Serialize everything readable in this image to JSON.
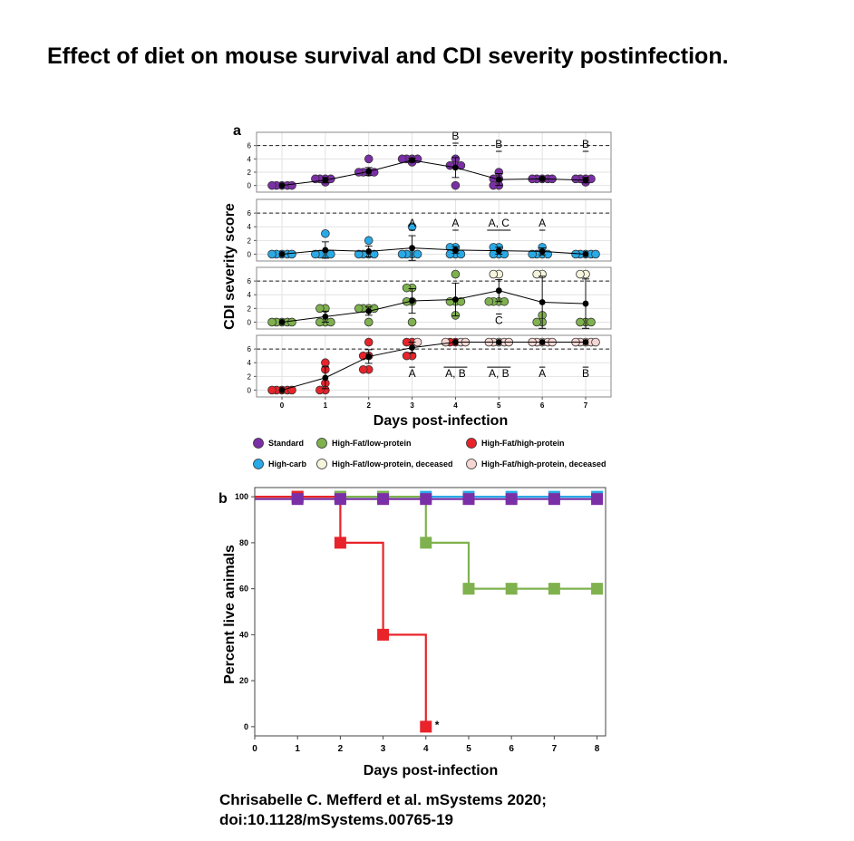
{
  "title": "Effect of diet on mouse survival and CDI severity postinfection.",
  "citation": {
    "line1": "Chrisabelle C. Mefferd et al. mSystems 2020;",
    "line2": "doi:10.1128/mSystems.00765-19"
  },
  "colors": {
    "standard": "#7b2fa6",
    "high_carb": "#29a9e6",
    "hflp": "#7fb24e",
    "hfhp": "#e8232a",
    "hflp_deceased": "#f5f4dc",
    "hfhp_deceased": "#f6d6d3",
    "mean": "#000000",
    "grid": "#e2e2e2"
  },
  "chart_data": [
    {
      "panel_label": "a",
      "type": "scatter",
      "xlabel": "Days post-infection",
      "ylabel": "CDI severity score",
      "x_ticks": [
        "0",
        "1",
        "2",
        "3",
        "4",
        "5",
        "6",
        "7"
      ],
      "y_ticks": [
        "0",
        "2",
        "4",
        "6"
      ],
      "ylim": [
        -1,
        8
      ],
      "threshold_line": 6,
      "legend_position": "bottom",
      "legend": [
        {
          "label": "Standard",
          "color_key": "standard"
        },
        {
          "label": "High-Fat/low-protein",
          "color_key": "hflp"
        },
        {
          "label": "High-Fat/high-protein",
          "color_key": "hfhp"
        },
        {
          "label": "High-carb",
          "color_key": "high_carb"
        },
        {
          "label": "High-Fat/low-protein, deceased",
          "color_key": "hflp_deceased"
        },
        {
          "label": "High-Fat/high-protein, deceased",
          "color_key": "hfhp_deceased"
        }
      ],
      "panels": [
        {
          "group": "Standard",
          "color_key": "standard",
          "means": [
            0,
            0.8,
            2.1,
            3.8,
            2.7,
            0.9,
            1.0,
            0.8
          ],
          "errors": [
            0,
            0.4,
            0.6,
            0.3,
            1.5,
            0.9,
            0.2,
            0.4
          ],
          "points": [
            [
              0,
              0
            ],
            [
              0,
              0
            ],
            [
              0,
              0
            ],
            [
              0,
              0
            ],
            [
              0,
              0
            ],
            [
              1,
              0.5
            ],
            [
              1,
              1
            ],
            [
              1,
              1
            ],
            [
              1,
              1
            ],
            [
              1,
              1
            ],
            [
              2,
              2
            ],
            [
              2,
              2
            ],
            [
              2,
              2
            ],
            [
              2,
              2
            ],
            [
              2,
              4
            ],
            [
              3,
              4
            ],
            [
              3,
              4
            ],
            [
              3,
              4
            ],
            [
              3,
              4
            ],
            [
              3,
              3.5
            ],
            [
              4,
              4
            ],
            [
              4,
              3
            ],
            [
              4,
              3
            ],
            [
              4,
              3
            ],
            [
              4,
              0
            ],
            [
              5,
              2
            ],
            [
              5,
              1
            ],
            [
              5,
              1
            ],
            [
              5,
              0
            ],
            [
              5,
              0
            ],
            [
              6,
              1
            ],
            [
              6,
              1
            ],
            [
              6,
              1
            ],
            [
              6,
              1
            ],
            [
              6,
              1
            ],
            [
              7,
              1
            ],
            [
              7,
              1
            ],
            [
              7,
              1
            ],
            [
              7,
              1
            ],
            [
              7,
              0.5
            ]
          ],
          "annotations": [
            {
              "day": 4,
              "text": "B",
              "pos": "above",
              "overline": false,
              "underline": true
            },
            {
              "day": 5,
              "text": "B",
              "pos": "above",
              "overline": false,
              "underline": true
            },
            {
              "day": 7,
              "text": "B",
              "pos": "above",
              "overline": false,
              "underline": true
            }
          ]
        },
        {
          "group": "High-carb",
          "color_key": "high_carb",
          "means": [
            0,
            0.6,
            0.4,
            0.9,
            0.6,
            0.5,
            0.4,
            0
          ],
          "errors": [
            0,
            1.2,
            0.8,
            1.8,
            0.5,
            0.5,
            0.5,
            0
          ],
          "points": [
            [
              0,
              0
            ],
            [
              0,
              0
            ],
            [
              0,
              0
            ],
            [
              0,
              0
            ],
            [
              0,
              0
            ],
            [
              1,
              3
            ],
            [
              1,
              0
            ],
            [
              1,
              0
            ],
            [
              1,
              0
            ],
            [
              1,
              0
            ],
            [
              2,
              2
            ],
            [
              2,
              0
            ],
            [
              2,
              0
            ],
            [
              2,
              0
            ],
            [
              2,
              0
            ],
            [
              3,
              4
            ],
            [
              3,
              0
            ],
            [
              3,
              0
            ],
            [
              3,
              0
            ],
            [
              3,
              0
            ],
            [
              4,
              1
            ],
            [
              4,
              1
            ],
            [
              4,
              0
            ],
            [
              4,
              0
            ],
            [
              4,
              0
            ],
            [
              5,
              1
            ],
            [
              5,
              1
            ],
            [
              5,
              0
            ],
            [
              5,
              0
            ],
            [
              5,
              0
            ],
            [
              6,
              1
            ],
            [
              6,
              0
            ],
            [
              6,
              0
            ],
            [
              6,
              0
            ],
            [
              6,
              0
            ],
            [
              7,
              0
            ],
            [
              7,
              0
            ],
            [
              7,
              0
            ],
            [
              7,
              0
            ],
            [
              7,
              0
            ]
          ],
          "annotations": [
            {
              "day": 3,
              "text": "A",
              "pos": "above",
              "overline": false,
              "underline": true
            },
            {
              "day": 4,
              "text": "A",
              "pos": "above",
              "overline": false,
              "underline": true
            },
            {
              "day": 5,
              "text": "A, C",
              "pos": "above",
              "overline": false,
              "underline": true
            },
            {
              "day": 6,
              "text": "A",
              "pos": "above",
              "overline": false,
              "underline": true
            }
          ]
        },
        {
          "group": "High-Fat/low-protein",
          "color_key": "hflp",
          "means": [
            0,
            0.8,
            1.6,
            3.1,
            3.3,
            4.6,
            2.9,
            2.7
          ],
          "errors": [
            0,
            0.8,
            0.6,
            1.8,
            2.4,
            1.6,
            3.8,
            3.6
          ],
          "points": [
            [
              0,
              0
            ],
            [
              0,
              0
            ],
            [
              0,
              0
            ],
            [
              0,
              0
            ],
            [
              0,
              0
            ],
            [
              1,
              2
            ],
            [
              1,
              2
            ],
            [
              1,
              0
            ],
            [
              1,
              0
            ],
            [
              1,
              0
            ],
            [
              2,
              2
            ],
            [
              2,
              2
            ],
            [
              2,
              2
            ],
            [
              2,
              2
            ],
            [
              2,
              0
            ],
            [
              3,
              5
            ],
            [
              3,
              5
            ],
            [
              3,
              3
            ],
            [
              3,
              3
            ],
            [
              3,
              0
            ],
            [
              4,
              7
            ],
            [
              4,
              3
            ],
            [
              4,
              3
            ],
            [
              4,
              3
            ],
            [
              4,
              1
            ],
            [
              5,
              3
            ],
            [
              5,
              3
            ],
            [
              5,
              3
            ],
            [
              5,
              3
            ],
            [
              6,
              1
            ],
            [
              6,
              0
            ],
            [
              6,
              0
            ],
            [
              7,
              0
            ],
            [
              7,
              0
            ],
            [
              7,
              0
            ]
          ],
          "deceased_points": [
            [
              5,
              7
            ],
            [
              5,
              7
            ],
            [
              6,
              7
            ],
            [
              6,
              7
            ],
            [
              7,
              7
            ],
            [
              7,
              7
            ]
          ],
          "annotations": [
            {
              "day": 5,
              "text": "C",
              "pos": "below",
              "overline": true,
              "underline": false
            }
          ]
        },
        {
          "group": "High-Fat/high-protein",
          "color_key": "hfhp",
          "means": [
            0,
            1.8,
            4.9,
            6.2,
            7,
            7,
            7,
            7
          ],
          "errors": [
            0,
            1.6,
            1.0,
            0.8,
            0,
            0,
            0,
            0
          ],
          "points": [
            [
              0,
              0
            ],
            [
              0,
              0
            ],
            [
              0,
              0
            ],
            [
              0,
              0
            ],
            [
              0,
              0
            ],
            [
              1,
              4
            ],
            [
              1,
              3
            ],
            [
              1,
              1
            ],
            [
              1,
              0
            ],
            [
              1,
              0
            ],
            [
              2,
              7
            ],
            [
              2,
              5
            ],
            [
              2,
              5
            ],
            [
              2,
              3
            ],
            [
              2,
              3
            ],
            [
              3,
              7
            ],
            [
              3,
              7
            ],
            [
              3,
              5
            ],
            [
              3,
              5
            ],
            [
              4,
              7
            ],
            [
              4,
              7
            ]
          ],
          "deceased_points": [
            [
              3,
              7
            ],
            [
              4,
              7
            ],
            [
              4,
              7
            ],
            [
              4,
              7
            ],
            [
              5,
              7
            ],
            [
              5,
              7
            ],
            [
              5,
              7
            ],
            [
              5,
              7
            ],
            [
              5,
              7
            ],
            [
              6,
              7
            ],
            [
              6,
              7
            ],
            [
              6,
              7
            ],
            [
              6,
              7
            ],
            [
              6,
              7
            ],
            [
              7,
              7
            ],
            [
              7,
              7
            ],
            [
              7,
              7
            ],
            [
              7,
              7
            ],
            [
              7,
              7
            ]
          ],
          "annotations": [
            {
              "day": 3,
              "text": "A",
              "pos": "below",
              "overline": true,
              "underline": false
            },
            {
              "day": 4,
              "text": "A, B",
              "pos": "below",
              "overline": true,
              "underline": false
            },
            {
              "day": 5,
              "text": "A, B",
              "pos": "below",
              "overline": true,
              "underline": false
            },
            {
              "day": 6,
              "text": "A",
              "pos": "below",
              "overline": true,
              "underline": false
            },
            {
              "day": 7,
              "text": "B",
              "pos": "below",
              "overline": true,
              "underline": false
            }
          ]
        }
      ]
    },
    {
      "panel_label": "b",
      "type": "line",
      "xlabel": "Days post-infection",
      "ylabel": "Percent live animals",
      "x": [
        0,
        1,
        2,
        3,
        4,
        5,
        6,
        7,
        8
      ],
      "x_ticks": [
        "0",
        "1",
        "2",
        "3",
        "4",
        "5",
        "6",
        "7",
        "8"
      ],
      "y_ticks": [
        "0",
        "20",
        "40",
        "60",
        "80",
        "100"
      ],
      "xlim": [
        0,
        8.2
      ],
      "ylim": [
        -4,
        104
      ],
      "step": true,
      "series": [
        {
          "color_key": "high_carb",
          "x": [
            1,
            2,
            3,
            4,
            5,
            6,
            7,
            8
          ],
          "values": [
            100,
            100,
            100,
            100,
            100,
            100,
            100,
            100
          ],
          "line_offset": 0
        },
        {
          "color_key": "hflp",
          "x": [
            1,
            2,
            3,
            4,
            5,
            6,
            7,
            8
          ],
          "values": [
            100,
            100,
            100,
            80,
            60,
            60,
            60,
            60
          ],
          "line_offset": 0
        },
        {
          "color_key": "hfhp",
          "x": [
            1,
            2,
            3,
            4
          ],
          "values": [
            100,
            80,
            40,
            0
          ],
          "line_offset": 0
        },
        {
          "color_key": "standard",
          "x": [
            1,
            2,
            3,
            4,
            5,
            6,
            7,
            8
          ],
          "values": [
            99,
            99,
            99,
            99,
            99,
            99,
            99,
            99
          ],
          "line_offset": 0
        }
      ],
      "annotation": {
        "text": "*",
        "x": 4,
        "y": 0
      }
    }
  ]
}
